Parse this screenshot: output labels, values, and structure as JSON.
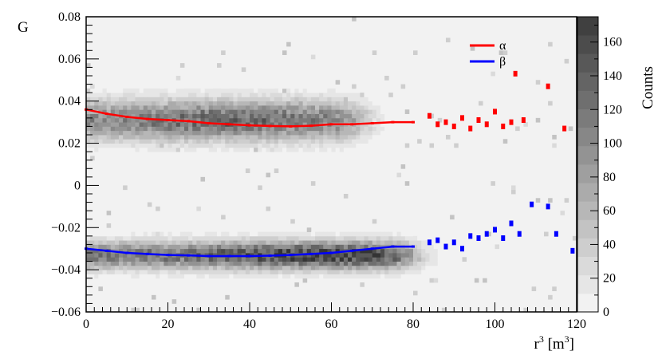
{
  "chart_data": {
    "type": "heatmap",
    "xlabel": "r",
    "xlabel_sup": "3",
    "xlabel_unit_open": " [m",
    "xlabel_unit_sup": "3",
    "xlabel_unit_close": "]",
    "ylabel": "G",
    "colorbar_label": "Counts",
    "xlim": [
      0,
      120
    ],
    "ylim": [
      -0.06,
      0.08
    ],
    "zlim": [
      0,
      175
    ],
    "x_ticks": [
      0,
      20,
      40,
      60,
      80,
      100,
      120
    ],
    "y_ticks": [
      -0.06,
      -0.04,
      -0.02,
      0,
      0.02,
      0.04,
      0.06,
      0.08
    ],
    "y_tick_labels": [
      "−0.06",
      "−0.04",
      "−0.02",
      "0",
      "0.02",
      "0.04",
      "0.06",
      "0.08"
    ],
    "z_ticks": [
      0,
      20,
      40,
      60,
      80,
      100,
      120,
      140,
      160
    ],
    "density_bands": [
      {
        "center": 0.031,
        "sigma": 0.0065,
        "x_end": 68,
        "peak_x": 35,
        "peak_counts": 130
      },
      {
        "center": -0.033,
        "sigma": 0.0045,
        "x_end": 80,
        "peak_x": 60,
        "peak_counts": 170
      }
    ],
    "legend": {
      "position": "top-right"
    },
    "series": [
      {
        "name": "α",
        "color": "#ff0000",
        "x": [
          0,
          5,
          10,
          15,
          20,
          25,
          30,
          35,
          40,
          45,
          50,
          55,
          60,
          65,
          70,
          75,
          80,
          84,
          86,
          88,
          90,
          92,
          94,
          96,
          98,
          100,
          102,
          104,
          105,
          107,
          113,
          117
        ],
        "y": [
          0.036,
          0.034,
          0.0325,
          0.0315,
          0.031,
          0.0305,
          0.0295,
          0.029,
          0.0285,
          0.0282,
          0.028,
          0.0283,
          0.029,
          0.029,
          0.0295,
          0.03,
          0.03,
          0.033,
          0.029,
          0.03,
          0.028,
          0.032,
          0.027,
          0.031,
          0.029,
          0.035,
          0.028,
          0.03,
          0.053,
          0.031,
          0.047,
          0.027
        ]
      },
      {
        "name": "β",
        "color": "#0000ff",
        "x": [
          0,
          5,
          10,
          15,
          20,
          25,
          30,
          35,
          40,
          45,
          50,
          55,
          60,
          65,
          70,
          75,
          80,
          84,
          86,
          88,
          90,
          92,
          94,
          96,
          98,
          100,
          102,
          104,
          106,
          109,
          113,
          115,
          119
        ],
        "y": [
          -0.03,
          -0.031,
          -0.032,
          -0.0325,
          -0.033,
          -0.0332,
          -0.0335,
          -0.0335,
          -0.0335,
          -0.0333,
          -0.033,
          -0.0325,
          -0.032,
          -0.031,
          -0.03,
          -0.029,
          -0.029,
          -0.027,
          -0.026,
          -0.029,
          -0.027,
          -0.03,
          -0.024,
          -0.025,
          -0.023,
          -0.021,
          -0.025,
          -0.018,
          -0.023,
          -0.009,
          -0.01,
          -0.023,
          -0.031
        ]
      }
    ]
  }
}
